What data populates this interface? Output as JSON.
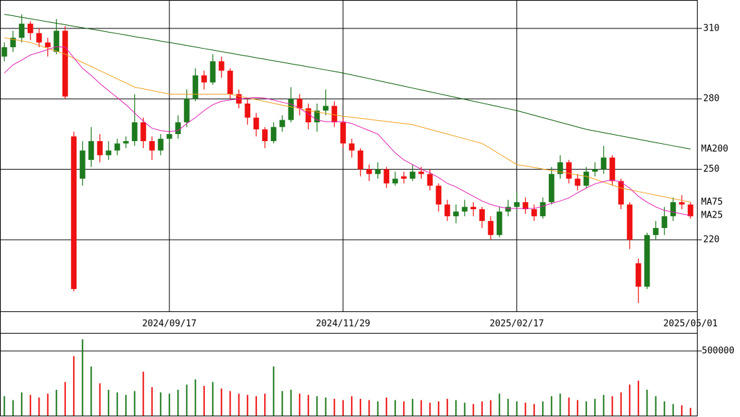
{
  "chart_data": [
    {
      "type": "candlestick",
      "categories": [
        null,
        null,
        null,
        null,
        null,
        null,
        null,
        null,
        null,
        null,
        null,
        null,
        null,
        null,
        null,
        null,
        null,
        null,
        null,
        "2024/09/17",
        null,
        null,
        null,
        null,
        null,
        null,
        null,
        null,
        null,
        null,
        null,
        null,
        null,
        null,
        null,
        null,
        null,
        null,
        null,
        "2024/11/29",
        null,
        null,
        null,
        null,
        null,
        null,
        null,
        null,
        null,
        null,
        null,
        null,
        null,
        null,
        null,
        null,
        null,
        null,
        null,
        "2025/02/17",
        null,
        null,
        null,
        null,
        null,
        null,
        null,
        null,
        null,
        null,
        null,
        null,
        null,
        null,
        null,
        null,
        null,
        null,
        null,
        "2025/05/01"
      ],
      "open": [
        298,
        302,
        306,
        312,
        308,
        304,
        300,
        309,
        264,
        246,
        254,
        262,
        256,
        258,
        261,
        262,
        270,
        262,
        258,
        263,
        265,
        270,
        280,
        290,
        287,
        296,
        292,
        282,
        278,
        272,
        267,
        262,
        268,
        271,
        280,
        276,
        270,
        275,
        277,
        270,
        261,
        258,
        250,
        248,
        250,
        244,
        247,
        246,
        249,
        248,
        243,
        235,
        230,
        232,
        234,
        233,
        228,
        222,
        232,
        234,
        236,
        233,
        230,
        236,
        248,
        253,
        246,
        243,
        249,
        250,
        255,
        245,
        235,
        210,
        200,
        222,
        225,
        230,
        236,
        235
      ],
      "high": [
        304,
        309,
        316,
        313,
        310,
        306,
        314,
        311,
        266,
        262,
        268,
        265,
        262,
        263,
        264,
        282,
        272,
        264,
        265,
        268,
        273,
        284,
        293,
        292,
        299,
        298,
        293,
        284,
        280,
        274,
        268,
        270,
        273,
        285,
        282,
        278,
        278,
        284,
        279,
        272,
        263,
        259,
        252,
        253,
        251,
        249,
        249,
        252,
        251,
        250,
        244,
        237,
        235,
        237,
        236,
        234,
        230,
        234,
        237,
        240,
        238,
        235,
        238,
        251,
        256,
        254,
        248,
        251,
        253,
        260,
        256,
        246,
        236,
        212,
        223,
        228,
        234,
        238,
        239,
        236
      ],
      "low": [
        296,
        300,
        304,
        305,
        302,
        298,
        299,
        280,
        198,
        243,
        251,
        253,
        254,
        256,
        259,
        260,
        259,
        254,
        256,
        261,
        263,
        268,
        279,
        284,
        286,
        289,
        280,
        276,
        269,
        264,
        259,
        261,
        266,
        270,
        273,
        267,
        266,
        273,
        268,
        259,
        255,
        247,
        245,
        246,
        242,
        243,
        244,
        245,
        246,
        241,
        232,
        228,
        227,
        230,
        230,
        225,
        220,
        221,
        230,
        232,
        231,
        228,
        229,
        235,
        246,
        244,
        241,
        242,
        247,
        248,
        243,
        233,
        216,
        193,
        199,
        220,
        222,
        228,
        233,
        229
      ],
      "close": [
        302,
        306,
        312,
        308,
        304,
        302,
        309,
        281,
        199,
        258,
        262,
        256,
        258,
        261,
        262,
        270,
        262,
        258,
        263,
        265,
        270,
        280,
        290,
        287,
        296,
        292,
        282,
        278,
        272,
        267,
        262,
        268,
        271,
        280,
        276,
        270,
        275,
        277,
        270,
        261,
        258,
        250,
        248,
        250,
        244,
        246,
        246,
        249,
        248,
        243,
        235,
        230,
        232,
        234,
        233,
        228,
        222,
        232,
        234,
        236,
        233,
        230,
        236,
        248,
        253,
        246,
        243,
        249,
        250,
        255,
        245,
        235,
        220,
        200,
        222,
        225,
        230,
        236,
        235,
        230
      ],
      "up_color": "#1e7a1e",
      "down_color": "#ee1111",
      "series": [
        {
          "name": "MA200",
          "color": "#0a5f0a",
          "values": [
            316,
            315.4,
            314.7,
            314.1,
            313.5,
            312.8,
            312.2,
            311.6,
            310.9,
            310.3,
            309.7,
            309.1,
            308.4,
            307.8,
            307.2,
            306.5,
            305.9,
            305.3,
            304.6,
            304,
            303.4,
            302.7,
            302.1,
            301.4,
            300.8,
            300.1,
            299.5,
            298.8,
            298.2,
            297.5,
            296.9,
            296.2,
            295.6,
            294.9,
            294.3,
            293.6,
            293,
            292.3,
            291.7,
            291,
            290.2,
            289.4,
            288.6,
            287.8,
            287,
            286.2,
            285.4,
            284.6,
            283.8,
            283,
            282.2,
            281.4,
            280.6,
            279.8,
            279,
            278.2,
            277.4,
            276.6,
            275.8,
            275,
            274,
            273,
            272,
            271,
            270,
            269,
            268,
            267,
            266.3,
            265.6,
            264.9,
            264.2,
            263.5,
            262.8,
            262.1,
            261.4,
            260.7,
            260,
            259.3,
            258.6
          ]
        },
        {
          "name": "MA75",
          "color": "#f0a020",
          "values": [
            306,
            305.3,
            304.7,
            304,
            302.8,
            301.5,
            300.3,
            299,
            297.3,
            295.5,
            293.8,
            292,
            290.3,
            288.5,
            286.8,
            285,
            284.3,
            283.5,
            282.8,
            282,
            282,
            282,
            282,
            282,
            282,
            282,
            282,
            281.2,
            280.4,
            279.7,
            278.9,
            278.1,
            277.3,
            276.6,
            275.8,
            275,
            274.4,
            273.8,
            273.2,
            272.6,
            272.2,
            271.7,
            271.3,
            270.8,
            270.4,
            269.9,
            269.5,
            269,
            268,
            267,
            266,
            265,
            264,
            263,
            262,
            261,
            258.8,
            256.5,
            254.3,
            252,
            251.4,
            250.8,
            250.1,
            249.5,
            248.9,
            248.3,
            247.6,
            247,
            245.8,
            244.5,
            243.3,
            242,
            241.3,
            240.5,
            239.8,
            239,
            238.3,
            237.5,
            236.8,
            236
          ]
        },
        {
          "name": "MA25",
          "color": "#e020b0",
          "values": [
            291,
            294.5,
            296.5,
            298.7,
            299.8,
            301,
            302.2,
            302,
            297.5,
            293,
            290,
            286.5,
            283.5,
            280.5,
            277.5,
            274,
            270.5,
            267.5,
            266.5,
            266,
            266.5,
            269.5,
            272,
            275,
            277.5,
            279,
            279.5,
            280,
            280.3,
            280.6,
            280.3,
            279.5,
            278.5,
            277.8,
            276,
            273.5,
            271,
            270.3,
            270.3,
            270.3,
            269.5,
            268,
            266.5,
            265,
            261,
            257,
            254,
            252,
            250,
            248.5,
            246.5,
            244,
            242.5,
            240.5,
            238.5,
            236.5,
            235,
            234,
            233.3,
            233.3,
            233.3,
            233.3,
            234.3,
            235.5,
            236.5,
            237.8,
            240,
            242,
            243.8,
            244.8,
            245.5,
            244.5,
            242,
            238.5,
            236,
            234,
            232.5,
            231.8,
            231,
            230.3
          ]
        }
      ],
      "ylim": [
        189.5,
        322.1
      ],
      "yticks": [
        220,
        250,
        280,
        310
      ],
      "grid": true
    },
    {
      "type": "bar",
      "values": [
        150000,
        120000,
        180000,
        160000,
        140000,
        170000,
        200000,
        260000,
        460000,
        590000,
        380000,
        250000,
        200000,
        180000,
        160000,
        190000,
        340000,
        220000,
        180000,
        170000,
        200000,
        240000,
        280000,
        230000,
        260000,
        210000,
        190000,
        170000,
        160000,
        150000,
        170000,
        380000,
        190000,
        200000,
        170000,
        160000,
        150000,
        140000,
        130000,
        120000,
        150000,
        130000,
        120000,
        110000,
        140000,
        120000,
        110000,
        130000,
        120000,
        100000,
        110000,
        130000,
        120000,
        100000,
        90000,
        110000,
        120000,
        170000,
        130000,
        110000,
        100000,
        90000,
        110000,
        150000,
        170000,
        140000,
        120000,
        110000,
        130000,
        160000,
        150000,
        180000,
        240000,
        270000,
        200000,
        150000,
        110000,
        90000,
        80000,
        60000
      ],
      "ylim": [
        0,
        634400
      ],
      "yticks": [
        500000
      ],
      "grid": true
    }
  ]
}
